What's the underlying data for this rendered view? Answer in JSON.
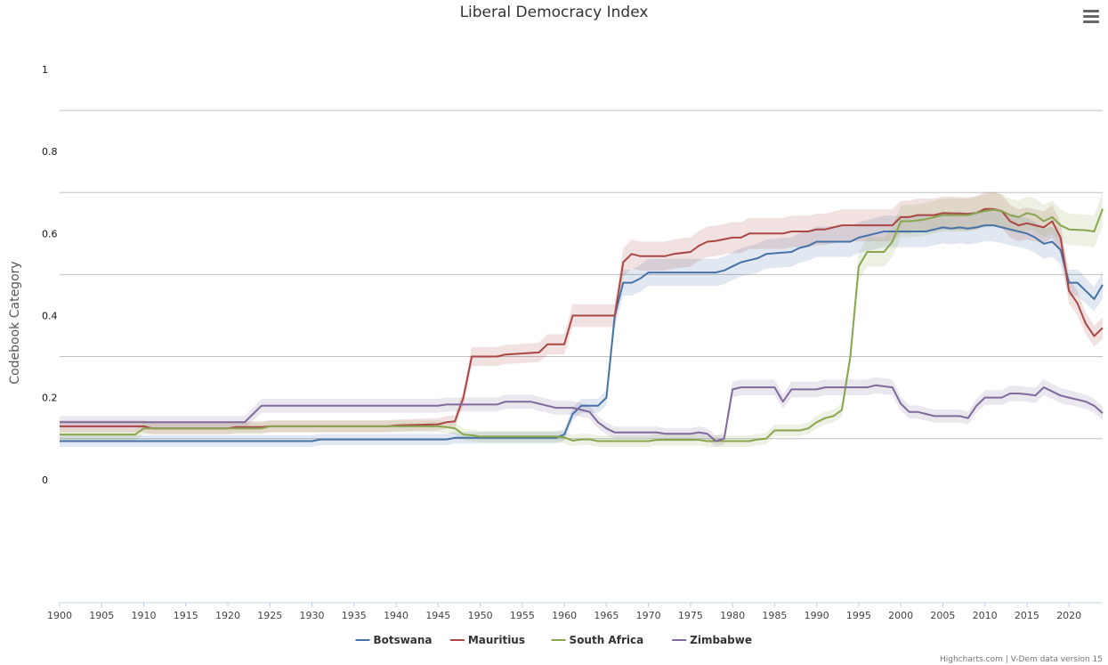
{
  "chart_data": {
    "type": "line",
    "title": "Liberal Democracy Index",
    "ylabel": "Codebook Category",
    "xlabel": "",
    "xlim": [
      1900,
      2024
    ],
    "ylim": [
      -0.3,
      1.0
    ],
    "ytick_labels": [
      {
        "label": "1",
        "value": 1.0
      },
      {
        "label": "0.8",
        "value": 0.8
      },
      {
        "label": "0.6",
        "value": 0.6
      },
      {
        "label": "0.4",
        "value": 0.4
      },
      {
        "label": "0.2",
        "value": 0.2
      },
      {
        "label": "0",
        "value": 0.0
      }
    ],
    "gridlines": [
      0.1,
      0.3,
      0.5,
      0.7,
      0.9
    ],
    "xticks": [
      1900,
      1905,
      1910,
      1915,
      1920,
      1925,
      1930,
      1935,
      1940,
      1945,
      1950,
      1955,
      1960,
      1965,
      1970,
      1975,
      1980,
      1985,
      1990,
      1995,
      2000,
      2005,
      2010,
      2015,
      2020
    ],
    "legend_position": "bottom-center",
    "credits": "Highcharts.com | V-Dem data version 15",
    "series": [
      {
        "name": "Botswana",
        "color": "#4572A7",
        "points": [
          [
            1900,
            0.094
          ],
          [
            1930,
            0.094
          ],
          [
            1931,
            0.098
          ],
          [
            1946,
            0.098
          ],
          [
            1947,
            0.102
          ],
          [
            1959,
            0.102
          ],
          [
            1960,
            0.11
          ],
          [
            1961,
            0.16
          ],
          [
            1962,
            0.18
          ],
          [
            1964,
            0.18
          ],
          [
            1965,
            0.2
          ],
          [
            1966,
            0.4
          ],
          [
            1967,
            0.48
          ],
          [
            1968,
            0.48
          ],
          [
            1969,
            0.49
          ],
          [
            1970,
            0.505
          ],
          [
            1978,
            0.505
          ],
          [
            1979,
            0.51
          ],
          [
            1980,
            0.52
          ],
          [
            1981,
            0.53
          ],
          [
            1982,
            0.535
          ],
          [
            1983,
            0.54
          ],
          [
            1984,
            0.55
          ],
          [
            1987,
            0.555
          ],
          [
            1988,
            0.565
          ],
          [
            1989,
            0.57
          ],
          [
            1990,
            0.58
          ],
          [
            1994,
            0.58
          ],
          [
            1995,
            0.59
          ],
          [
            1996,
            0.595
          ],
          [
            1997,
            0.6
          ],
          [
            1998,
            0.605
          ],
          [
            2003,
            0.605
          ],
          [
            2004,
            0.61
          ],
          [
            2005,
            0.615
          ],
          [
            2006,
            0.612
          ],
          [
            2007,
            0.615
          ],
          [
            2008,
            0.612
          ],
          [
            2009,
            0.615
          ],
          [
            2010,
            0.62
          ],
          [
            2011,
            0.62
          ],
          [
            2012,
            0.615
          ],
          [
            2013,
            0.61
          ],
          [
            2014,
            0.605
          ],
          [
            2015,
            0.6
          ],
          [
            2016,
            0.59
          ],
          [
            2017,
            0.575
          ],
          [
            2018,
            0.58
          ],
          [
            2019,
            0.56
          ],
          [
            2020,
            0.48
          ],
          [
            2021,
            0.48
          ],
          [
            2022,
            0.46
          ],
          [
            2023,
            0.44
          ],
          [
            2024,
            0.475
          ]
        ]
      },
      {
        "name": "Mauritius",
        "color": "#AA4643",
        "points": [
          [
            1900,
            0.13
          ],
          [
            1910,
            0.13
          ],
          [
            1911,
            0.125
          ],
          [
            1920,
            0.125
          ],
          [
            1921,
            0.128
          ],
          [
            1924,
            0.128
          ],
          [
            1925,
            0.13
          ],
          [
            1939,
            0.13
          ],
          [
            1940,
            0.132
          ],
          [
            1945,
            0.135
          ],
          [
            1946,
            0.14
          ],
          [
            1947,
            0.142
          ],
          [
            1948,
            0.2
          ],
          [
            1949,
            0.3
          ],
          [
            1952,
            0.3
          ],
          [
            1953,
            0.305
          ],
          [
            1957,
            0.31
          ],
          [
            1958,
            0.33
          ],
          [
            1960,
            0.33
          ],
          [
            1961,
            0.4
          ],
          [
            1966,
            0.4
          ],
          [
            1967,
            0.53
          ],
          [
            1968,
            0.55
          ],
          [
            1969,
            0.545
          ],
          [
            1972,
            0.545
          ],
          [
            1973,
            0.55
          ],
          [
            1975,
            0.555
          ],
          [
            1976,
            0.57
          ],
          [
            1977,
            0.58
          ],
          [
            1978,
            0.582
          ],
          [
            1980,
            0.59
          ],
          [
            1981,
            0.59
          ],
          [
            1982,
            0.6
          ],
          [
            1986,
            0.6
          ],
          [
            1987,
            0.605
          ],
          [
            1989,
            0.605
          ],
          [
            1990,
            0.61
          ],
          [
            1991,
            0.61
          ],
          [
            1992,
            0.615
          ],
          [
            1993,
            0.62
          ],
          [
            1999,
            0.62
          ],
          [
            2000,
            0.64
          ],
          [
            2001,
            0.64
          ],
          [
            2002,
            0.645
          ],
          [
            2004,
            0.645
          ],
          [
            2005,
            0.65
          ],
          [
            2008,
            0.648
          ],
          [
            2009,
            0.65
          ],
          [
            2010,
            0.66
          ],
          [
            2011,
            0.66
          ],
          [
            2012,
            0.655
          ],
          [
            2013,
            0.63
          ],
          [
            2014,
            0.62
          ],
          [
            2015,
            0.625
          ],
          [
            2016,
            0.62
          ],
          [
            2017,
            0.615
          ],
          [
            2018,
            0.63
          ],
          [
            2019,
            0.59
          ],
          [
            2020,
            0.46
          ],
          [
            2021,
            0.43
          ],
          [
            2022,
            0.38
          ],
          [
            2023,
            0.35
          ],
          [
            2024,
            0.37
          ]
        ]
      },
      {
        "name": "South Africa",
        "color": "#89A54E",
        "points": [
          [
            1900,
            0.11
          ],
          [
            1909,
            0.11
          ],
          [
            1910,
            0.125
          ],
          [
            1924,
            0.125
          ],
          [
            1925,
            0.13
          ],
          [
            1945,
            0.13
          ],
          [
            1946,
            0.128
          ],
          [
            1947,
            0.125
          ],
          [
            1948,
            0.11
          ],
          [
            1949,
            0.108
          ],
          [
            1950,
            0.105
          ],
          [
            1959,
            0.105
          ],
          [
            1960,
            0.103
          ],
          [
            1961,
            0.095
          ],
          [
            1962,
            0.098
          ],
          [
            1963,
            0.098
          ],
          [
            1964,
            0.094
          ],
          [
            1970,
            0.094
          ],
          [
            1971,
            0.097
          ],
          [
            1976,
            0.097
          ],
          [
            1977,
            0.094
          ],
          [
            1982,
            0.094
          ],
          [
            1983,
            0.098
          ],
          [
            1984,
            0.1
          ],
          [
            1985,
            0.12
          ],
          [
            1988,
            0.12
          ],
          [
            1989,
            0.125
          ],
          [
            1990,
            0.14
          ],
          [
            1991,
            0.15
          ],
          [
            1992,
            0.155
          ],
          [
            1993,
            0.17
          ],
          [
            1994,
            0.3
          ],
          [
            1995,
            0.52
          ],
          [
            1996,
            0.555
          ],
          [
            1998,
            0.555
          ],
          [
            1999,
            0.58
          ],
          [
            2000,
            0.63
          ],
          [
            2001,
            0.63
          ],
          [
            2002,
            0.632
          ],
          [
            2003,
            0.635
          ],
          [
            2004,
            0.64
          ],
          [
            2005,
            0.645
          ],
          [
            2008,
            0.645
          ],
          [
            2009,
            0.65
          ],
          [
            2010,
            0.655
          ],
          [
            2011,
            0.658
          ],
          [
            2012,
            0.655
          ],
          [
            2013,
            0.645
          ],
          [
            2014,
            0.64
          ],
          [
            2015,
            0.65
          ],
          [
            2016,
            0.645
          ],
          [
            2017,
            0.63
          ],
          [
            2018,
            0.64
          ],
          [
            2019,
            0.62
          ],
          [
            2020,
            0.61
          ],
          [
            2022,
            0.608
          ],
          [
            2023,
            0.605
          ],
          [
            2024,
            0.66
          ]
        ]
      },
      {
        "name": "Zimbabwe",
        "color": "#80699B",
        "points": [
          [
            1900,
            0.14
          ],
          [
            1922,
            0.14
          ],
          [
            1923,
            0.16
          ],
          [
            1924,
            0.18
          ],
          [
            1945,
            0.18
          ],
          [
            1946,
            0.183
          ],
          [
            1952,
            0.183
          ],
          [
            1953,
            0.19
          ],
          [
            1956,
            0.19
          ],
          [
            1957,
            0.185
          ],
          [
            1958,
            0.18
          ],
          [
            1959,
            0.175
          ],
          [
            1960,
            0.175
          ],
          [
            1961,
            0.175
          ],
          [
            1962,
            0.17
          ],
          [
            1963,
            0.165
          ],
          [
            1964,
            0.14
          ],
          [
            1965,
            0.125
          ],
          [
            1966,
            0.115
          ],
          [
            1971,
            0.115
          ],
          [
            1972,
            0.112
          ],
          [
            1975,
            0.112
          ],
          [
            1976,
            0.115
          ],
          [
            1977,
            0.112
          ],
          [
            1978,
            0.094
          ],
          [
            1979,
            0.1
          ],
          [
            1980,
            0.22
          ],
          [
            1981,
            0.225
          ],
          [
            1983,
            0.225
          ],
          [
            1985,
            0.225
          ],
          [
            1986,
            0.19
          ],
          [
            1987,
            0.22
          ],
          [
            1990,
            0.22
          ],
          [
            1991,
            0.225
          ],
          [
            1996,
            0.225
          ],
          [
            1997,
            0.23
          ],
          [
            1999,
            0.225
          ],
          [
            2000,
            0.185
          ],
          [
            2001,
            0.165
          ],
          [
            2002,
            0.165
          ],
          [
            2003,
            0.16
          ],
          [
            2004,
            0.155
          ],
          [
            2007,
            0.155
          ],
          [
            2008,
            0.15
          ],
          [
            2009,
            0.18
          ],
          [
            2010,
            0.2
          ],
          [
            2012,
            0.2
          ],
          [
            2013,
            0.21
          ],
          [
            2014,
            0.21
          ],
          [
            2015,
            0.208
          ],
          [
            2016,
            0.205
          ],
          [
            2017,
            0.225
          ],
          [
            2018,
            0.215
          ],
          [
            2019,
            0.205
          ],
          [
            2020,
            0.2
          ],
          [
            2021,
            0.195
          ],
          [
            2022,
            0.19
          ],
          [
            2023,
            0.18
          ],
          [
            2024,
            0.162
          ]
        ]
      }
    ]
  }
}
